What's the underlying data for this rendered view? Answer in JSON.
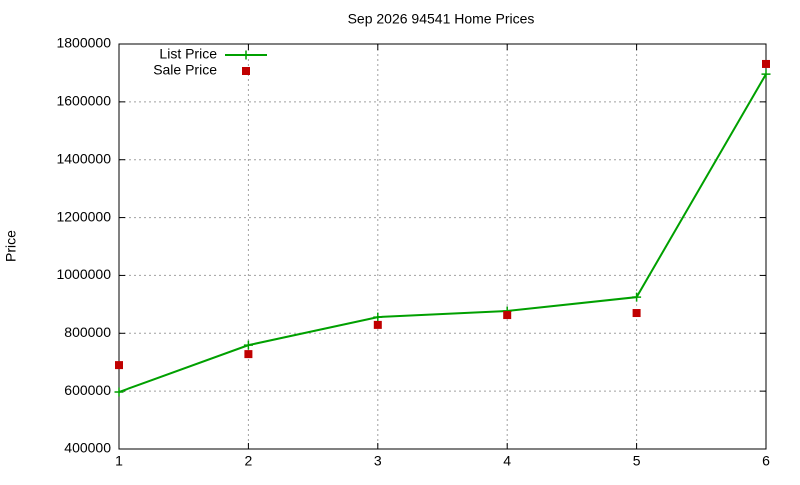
{
  "chart_data": {
    "type": "line",
    "title": "Sep 2026 94541 Home Prices",
    "y_label": "Price",
    "x": [
      1,
      2,
      3,
      4,
      5,
      6
    ],
    "series": [
      {
        "name": "List Price",
        "color": "#00a000",
        "style": "linespoints",
        "marker": "plus",
        "values": [
          597000,
          759000,
          856000,
          877000,
          925000,
          1696000
        ]
      },
      {
        "name": "Sale Price",
        "color": "#c00000",
        "style": "points",
        "marker": "square",
        "values": [
          690000,
          728000,
          829000,
          863000,
          870000,
          1731000
        ]
      }
    ],
    "xlim": [
      1,
      6
    ],
    "xticks": [
      1,
      2,
      3,
      4,
      5,
      6
    ],
    "ylim": [
      400000,
      1800000
    ],
    "yticks": [
      400000,
      600000,
      800000,
      1000000,
      1200000,
      1400000,
      1600000,
      1800000
    ],
    "grid": true,
    "legend": "top-left"
  }
}
